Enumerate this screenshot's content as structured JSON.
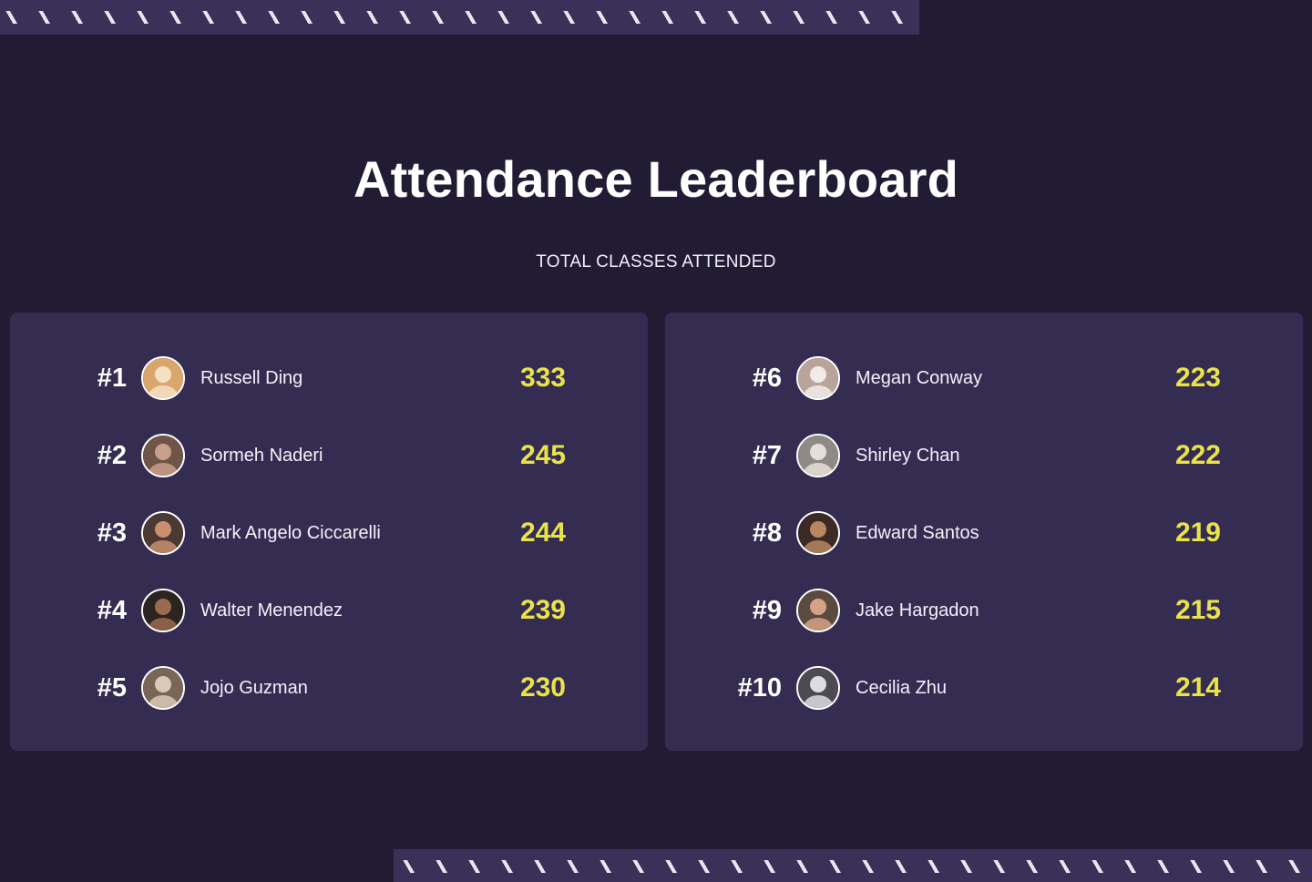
{
  "header": {
    "title": "Attendance Leaderboard",
    "subtitle": "TOTAL CLASSES ATTENDED"
  },
  "colors": {
    "background": "#221b34",
    "panel": "#352c52",
    "score": "#e9e34a",
    "stripe": "#3a3158"
  },
  "leaderboard": {
    "left": [
      {
        "rank": "#1",
        "name": "Russell Ding",
        "score": "333",
        "avatar_icon": "dog-avatar-icon",
        "avatar_colors": [
          "#d9a66b",
          "#f4e1c4"
        ]
      },
      {
        "rank": "#2",
        "name": "Sormeh Naderi",
        "score": "245",
        "avatar_icon": "people-avatar-icon",
        "avatar_colors": [
          "#6e5548",
          "#c9a08a"
        ]
      },
      {
        "rank": "#3",
        "name": "Mark Angelo Ciccarelli",
        "score": "244",
        "avatar_icon": "person-avatar-icon",
        "avatar_colors": [
          "#4a3a33",
          "#c98f6f"
        ]
      },
      {
        "rank": "#4",
        "name": "Walter Menendez",
        "score": "239",
        "avatar_icon": "person-avatar-icon",
        "avatar_colors": [
          "#2b2420",
          "#9c6a4f"
        ]
      },
      {
        "rank": "#5",
        "name": "Jojo Guzman",
        "score": "230",
        "avatar_icon": "person-dog-avatar-icon",
        "avatar_colors": [
          "#7a6656",
          "#d9c9b5"
        ]
      }
    ],
    "right": [
      {
        "rank": "#6",
        "name": "Megan Conway",
        "score": "223",
        "avatar_icon": "person-avatar-icon",
        "avatar_colors": [
          "#b8a49a",
          "#f1ece9"
        ]
      },
      {
        "rank": "#7",
        "name": "Shirley Chan",
        "score": "222",
        "avatar_icon": "person-avatar-icon",
        "avatar_colors": [
          "#8f8a86",
          "#e6dfd8"
        ]
      },
      {
        "rank": "#8",
        "name": "Edward Santos",
        "score": "219",
        "avatar_icon": "person-avatar-icon",
        "avatar_colors": [
          "#3b2b24",
          "#b98663"
        ]
      },
      {
        "rank": "#9",
        "name": "Jake Hargadon",
        "score": "215",
        "avatar_icon": "person-avatar-icon",
        "avatar_colors": [
          "#5a4a40",
          "#d6a286"
        ]
      },
      {
        "rank": "#10",
        "name": "Cecilia Zhu",
        "score": "214",
        "avatar_icon": "person-avatar-icon",
        "avatar_colors": [
          "#4d4a52",
          "#dcdde2"
        ]
      }
    ]
  }
}
